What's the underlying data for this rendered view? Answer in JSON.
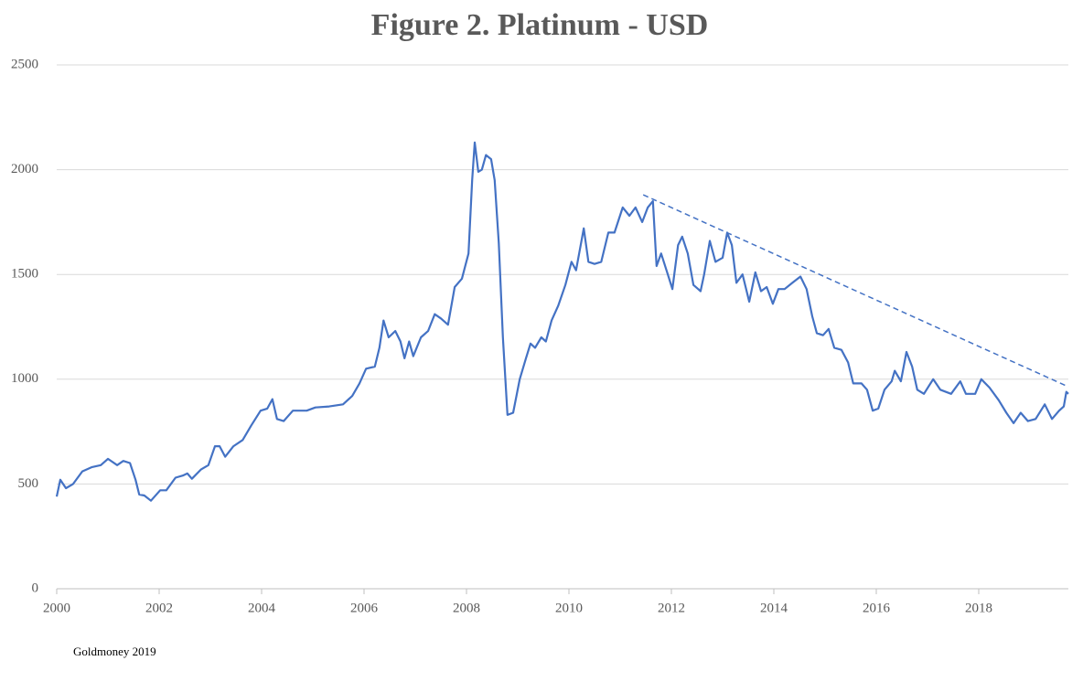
{
  "chart_data": {
    "type": "line",
    "title": "Figure 2. Platinum - USD",
    "source": "Goldmoney 2019",
    "xlim": [
      2000,
      2019.75
    ],
    "ylim": [
      0,
      2500
    ],
    "xticks": [
      2000,
      2002,
      2004,
      2006,
      2008,
      2010,
      2012,
      2014,
      2016,
      2018
    ],
    "yticks": [
      0,
      500,
      1000,
      1500,
      2000,
      2500
    ],
    "grid": true,
    "series": [
      {
        "color": "#4472c4",
        "x": [
          2000.0,
          2000.07,
          2000.18,
          2000.32,
          2000.5,
          2000.68,
          2000.86,
          2001.0,
          2001.18,
          2001.3,
          2001.43,
          2001.54,
          2001.61,
          2001.71,
          2001.84,
          2002.02,
          2002.14,
          2002.32,
          2002.46,
          2002.55,
          2002.64,
          2002.82,
          2002.96,
          2003.09,
          2003.18,
          2003.29,
          2003.45,
          2003.63,
          2003.8,
          2003.98,
          2004.11,
          2004.21,
          2004.3,
          2004.43,
          2004.61,
          2004.88,
          2005.05,
          2005.32,
          2005.59,
          2005.77,
          2005.91,
          2006.04,
          2006.21,
          2006.3,
          2006.38,
          2006.48,
          2006.61,
          2006.71,
          2006.79,
          2006.88,
          2006.96,
          2007.11,
          2007.25,
          2007.38,
          2007.5,
          2007.64,
          2007.77,
          2007.91,
          2008.04,
          2008.11,
          2008.16,
          2008.23,
          2008.3,
          2008.38,
          2008.48,
          2008.55,
          2008.63,
          2008.71,
          2008.8,
          2008.91,
          2009.04,
          2009.16,
          2009.25,
          2009.34,
          2009.46,
          2009.55,
          2009.66,
          2009.79,
          2009.93,
          2010.05,
          2010.14,
          2010.29,
          2010.38,
          2010.5,
          2010.63,
          2010.77,
          2010.89,
          2011.05,
          2011.18,
          2011.3,
          2011.43,
          2011.54,
          2011.64,
          2011.71,
          2011.8,
          2011.93,
          2012.02,
          2012.13,
          2012.21,
          2012.32,
          2012.43,
          2012.57,
          2012.64,
          2012.75,
          2012.86,
          2013.0,
          2013.09,
          2013.18,
          2013.27,
          2013.39,
          2013.52,
          2013.64,
          2013.75,
          2013.86,
          2013.98,
          2014.09,
          2014.21,
          2014.36,
          2014.52,
          2014.64,
          2014.75,
          2014.84,
          2014.96,
          2015.07,
          2015.18,
          2015.32,
          2015.45,
          2015.55,
          2015.71,
          2015.82,
          2015.93,
          2016.04,
          2016.16,
          2016.3,
          2016.36,
          2016.48,
          2016.59,
          2016.7,
          2016.8,
          2016.93,
          2017.11,
          2017.25,
          2017.46,
          2017.64,
          2017.75,
          2017.93,
          2018.05,
          2018.21,
          2018.39,
          2018.54,
          2018.68,
          2018.82,
          2018.96,
          2019.11,
          2019.29,
          2019.43,
          2019.57,
          2019.66,
          2019.71,
          2019.75
        ],
        "values": [
          440,
          520,
          480,
          500,
          560,
          580,
          590,
          620,
          590,
          610,
          600,
          520,
          450,
          445,
          420,
          470,
          470,
          530,
          540,
          550,
          525,
          570,
          590,
          680,
          680,
          630,
          680,
          710,
          780,
          850,
          860,
          905,
          810,
          800,
          850,
          850,
          865,
          870,
          880,
          920,
          980,
          1050,
          1060,
          1150,
          1280,
          1200,
          1230,
          1180,
          1100,
          1180,
          1110,
          1200,
          1230,
          1310,
          1290,
          1260,
          1440,
          1480,
          1600,
          1950,
          2130,
          1990,
          2000,
          2070,
          2050,
          1950,
          1650,
          1200,
          830,
          840,
          1000,
          1100,
          1170,
          1150,
          1200,
          1180,
          1280,
          1350,
          1450,
          1560,
          1520,
          1720,
          1560,
          1550,
          1560,
          1700,
          1700,
          1820,
          1780,
          1820,
          1750,
          1820,
          1850,
          1540,
          1600,
          1500,
          1430,
          1640,
          1680,
          1600,
          1450,
          1420,
          1500,
          1660,
          1560,
          1580,
          1700,
          1640,
          1460,
          1500,
          1370,
          1510,
          1420,
          1440,
          1360,
          1430,
          1430,
          1460,
          1490,
          1430,
          1300,
          1220,
          1210,
          1240,
          1150,
          1140,
          1080,
          980,
          980,
          950,
          850,
          860,
          950,
          990,
          1040,
          990,
          1130,
          1060,
          950,
          930,
          1000,
          950,
          930,
          990,
          930,
          930,
          1000,
          960,
          900,
          840,
          790,
          840,
          800,
          810,
          880,
          810,
          850,
          870,
          940,
          930
        ]
      },
      {
        "color": "#4472c4",
        "dash": true,
        "x": [
          2011.45,
          2019.75
        ],
        "values": [
          1880,
          964
        ]
      }
    ]
  }
}
